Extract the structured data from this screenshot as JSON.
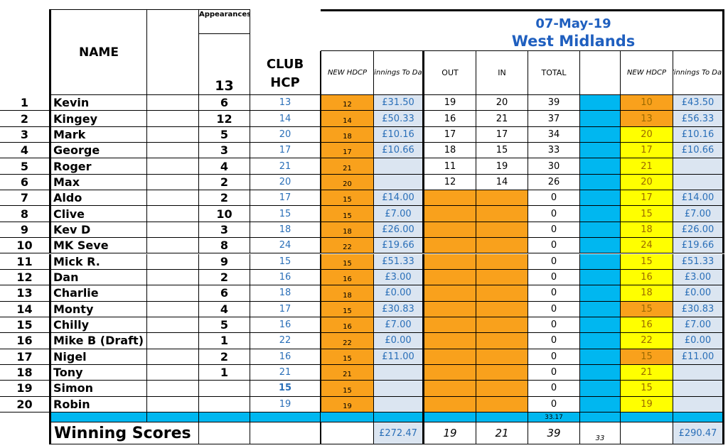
{
  "header": {
    "name_label": "NAME",
    "appearances_label": "Appearances out of",
    "appearances_total": "13",
    "club_hcp_label": "CLUB HCP",
    "new_hdcp_label": "NEW HDCP",
    "winnings_label": "Winnings To Date",
    "event_date": "07-May-19",
    "event_venue": "West Midlands",
    "out_label": "OUT",
    "in_label": "IN",
    "total_label": "TOTAL",
    "new_hdcp2_label": "NEW HDCP",
    "winnings2_label": "Winnings To Date"
  },
  "rows": [
    {
      "num": "1",
      "name": "Kevin",
      "app": "6",
      "club": "13",
      "hdcp": "12",
      "win": "£31.50",
      "out": "19",
      "in": "20",
      "total": "39",
      "hdcp2": "10",
      "win2": "£43.50"
    },
    {
      "num": "2",
      "name": "Kingey",
      "app": "12",
      "club": "14",
      "hdcp": "14",
      "win": "£50.33",
      "out": "16",
      "in": "21",
      "total": "37",
      "hdcp2": "13",
      "win2": "£56.33"
    },
    {
      "num": "3",
      "name": "Mark",
      "app": "5",
      "club": "20",
      "hdcp": "18",
      "win": "£10.16",
      "out": "17",
      "in": "17",
      "total": "34",
      "hdcp2": "20",
      "win2": "£10.16"
    },
    {
      "num": "4",
      "name": "George",
      "app": "3",
      "club": "17",
      "hdcp": "17",
      "win": "£10.66",
      "out": "18",
      "in": "15",
      "total": "33",
      "hdcp2": "17",
      "win2": "£10.66"
    },
    {
      "num": "5",
      "name": "Roger",
      "app": "4",
      "club": "21",
      "hdcp": "21",
      "win": "",
      "out": "11",
      "in": "19",
      "total": "30",
      "hdcp2": "21",
      "win2": ""
    },
    {
      "num": "6",
      "name": "Max",
      "app": "2",
      "club": "20",
      "hdcp": "20",
      "win": "",
      "out": "12",
      "in": "14",
      "total": "26",
      "hdcp2": "20",
      "win2": ""
    },
    {
      "num": "7",
      "name": "Aldo",
      "app": "2",
      "club": "17",
      "hdcp": "15",
      "win": "£14.00",
      "out": "",
      "in": "",
      "total": "0",
      "hdcp2": "17",
      "win2": "£14.00"
    },
    {
      "num": "8",
      "name": "Clive",
      "app": "10",
      "club": "15",
      "hdcp": "15",
      "win": "£7.00",
      "out": "",
      "in": "",
      "total": "0",
      "hdcp2": "15",
      "win2": "£7.00"
    },
    {
      "num": "9",
      "name": "Kev D",
      "app": "3",
      "club": "18",
      "hdcp": "18",
      "win": "£26.00",
      "out": "",
      "in": "",
      "total": "0",
      "hdcp2": "18",
      "win2": "£26.00"
    },
    {
      "num": "10",
      "name": "MK Seve",
      "app": "8",
      "club": "24",
      "hdcp": "22",
      "win": "£19.66",
      "out": "",
      "in": "",
      "total": "0",
      "hdcp2": "24",
      "win2": "£19.66"
    },
    {
      "num": "11",
      "name": "Mick R.",
      "app": "9",
      "club": "15",
      "hdcp": "15",
      "win": "£51.33",
      "out": "",
      "in": "",
      "total": "0",
      "hdcp2": "15",
      "win2": "£51.33"
    },
    {
      "num": "12",
      "name": "Dan",
      "app": "2",
      "club": "16",
      "hdcp": "16",
      "win": "£3.00",
      "out": "",
      "in": "",
      "total": "0",
      "hdcp2": "16",
      "win2": "£3.00"
    },
    {
      "num": "13",
      "name": "Charlie",
      "app": "6",
      "club": "18",
      "hdcp": "18",
      "win": "£0.00",
      "out": "",
      "in": "",
      "total": "0",
      "hdcp2": "18",
      "win2": "£0.00"
    },
    {
      "num": "14",
      "name": "Monty",
      "app": "4",
      "club": "17",
      "hdcp": "15",
      "win": "£30.83",
      "out": "",
      "in": "",
      "total": "0",
      "hdcp2": "15",
      "win2": "£30.83"
    },
    {
      "num": "15",
      "name": "Chilly",
      "app": "5",
      "club": "16",
      "hdcp": "16",
      "win": "£7.00",
      "out": "",
      "in": "",
      "total": "0",
      "hdcp2": "16",
      "win2": "£7.00"
    },
    {
      "num": "16",
      "name": "Mike B (Draft)",
      "app": "1",
      "club": "22",
      "hdcp": "22",
      "win": "£0.00",
      "out": "",
      "in": "",
      "total": "0",
      "hdcp2": "22",
      "win2": "£0.00"
    },
    {
      "num": "17",
      "name": "Nigel",
      "app": "2",
      "club": "16",
      "hdcp": "15",
      "win": "£11.00",
      "out": "",
      "in": "",
      "total": "0",
      "hdcp2": "15",
      "win2": "£11.00"
    },
    {
      "num": "18",
      "name": "Tony",
      "app": "1",
      "club": "21",
      "hdcp": "21",
      "win": "",
      "out": "",
      "in": "",
      "total": "0",
      "hdcp2": "21",
      "win2": ""
    },
    {
      "num": "19",
      "name": "Simon",
      "app": "",
      "club": "15",
      "hdcp": "15",
      "win": "",
      "out": "",
      "in": "",
      "total": "0",
      "hdcp2": "15",
      "win2": ""
    },
    {
      "num": "20",
      "name": "Robin",
      "app": "",
      "club": "19",
      "hdcp": "19",
      "win": "",
      "out": "",
      "in": "",
      "total": "0",
      "hdcp2": "19",
      "win2": ""
    }
  ],
  "spacer_total": "33.17",
  "footer": {
    "label": "Winning Scores",
    "winnings_total": "£272.47",
    "out": "19",
    "in": "21",
    "total": "39",
    "cyan_value": "33",
    "winnings2_total": "£290.47"
  },
  "colors": {
    "orange": "#f9a11c",
    "yellow": "#ffff00",
    "cyan": "#00b7f0",
    "light_blue": "#dbe5f1",
    "heading_blue": "#1f5fbf",
    "value_blue": "#2a6fb8"
  }
}
